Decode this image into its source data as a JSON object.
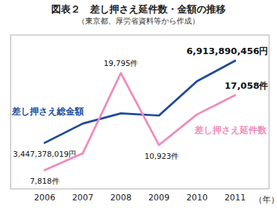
{
  "chart_data": {
    "type": "line",
    "title": "図表２　差し押さえ延件数・金額の推移",
    "subtitle": "（東京都、厚労省資料等から作成）",
    "xlabel": "（年）",
    "categories": [
      "2006",
      "2007",
      "2008",
      "2009",
      "2010",
      "2011"
    ],
    "series": [
      {
        "name": "差し押さえ総金額",
        "color": "#1f4b9b",
        "axis": "y2",
        "values": [
          3447378019,
          4260000000,
          4690000000,
          4600000000,
          6050000000,
          6913890456
        ],
        "value_labels": [
          "3,447,378,019円",
          null,
          null,
          null,
          null,
          "6,913,890,456円"
        ]
      },
      {
        "name": "差し押さえ延件数",
        "color": "#f08cba",
        "values": [
          7818,
          9900,
          19795,
          10923,
          14700,
          17058
        ],
        "value_labels": [
          "7,818件",
          null,
          "19,795件",
          "10,923件",
          null,
          "17,058件"
        ]
      }
    ],
    "ylim": [
      5500,
      24500
    ],
    "yticks": [],
    "y2lim": [
      1500000000,
      8000000000
    ],
    "y2ticks": [],
    "grid": false,
    "data_labels": true,
    "tick_labels": "x"
  }
}
